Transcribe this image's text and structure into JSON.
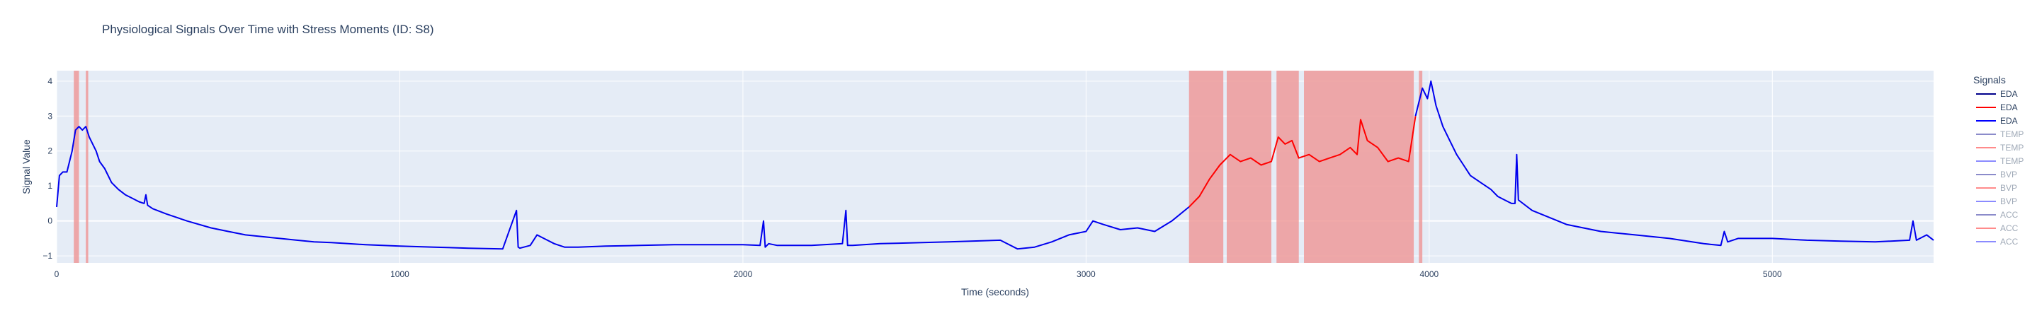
{
  "chart_data": {
    "type": "line",
    "title": "Physiological Signals Over Time with Stress Moments (ID: S8)",
    "xlabel": "Time (seconds)",
    "ylabel": "Signal Value",
    "xlim": [
      0,
      5470
    ],
    "ylim": [
      -1.2,
      4.3
    ],
    "x_ticks": [
      0,
      1000,
      2000,
      3000,
      4000,
      5000
    ],
    "x_tick_labels": [
      "0",
      "1000",
      "2000",
      "3000",
      "4000",
      "5000"
    ],
    "y_ticks": [
      -1,
      0,
      1,
      2,
      3,
      4
    ],
    "y_tick_labels": [
      "−1",
      "0",
      "1",
      "2",
      "3",
      "4"
    ],
    "grid": true,
    "legend_position": "right",
    "legend_title": "Signals",
    "legend": [
      {
        "name": "EDA",
        "color": "#00008b",
        "visible": true
      },
      {
        "name": "EDA",
        "color": "#ff0000",
        "visible": true
      },
      {
        "name": "EDA",
        "color": "#0000ff",
        "visible": true
      },
      {
        "name": "TEMP",
        "color": "#00008b",
        "visible": false
      },
      {
        "name": "TEMP",
        "color": "#ff0000",
        "visible": false
      },
      {
        "name": "TEMP",
        "color": "#0000ff",
        "visible": false
      },
      {
        "name": "BVP",
        "color": "#00008b",
        "visible": false
      },
      {
        "name": "BVP",
        "color": "#ff0000",
        "visible": false
      },
      {
        "name": "BVP",
        "color": "#0000ff",
        "visible": false
      },
      {
        "name": "ACC",
        "color": "#00008b",
        "visible": false
      },
      {
        "name": "ACC",
        "color": "#ff0000",
        "visible": false
      },
      {
        "name": "ACC",
        "color": "#0000ff",
        "visible": false
      }
    ],
    "stress_regions": [
      [
        50,
        65
      ],
      [
        85,
        92
      ],
      [
        3300,
        3400
      ],
      [
        3410,
        3540
      ],
      [
        3555,
        3620
      ],
      [
        3635,
        3955
      ],
      [
        3970,
        3980
      ]
    ],
    "stress_color": "#ef9a9a",
    "series": [
      {
        "name": "EDA",
        "color": "#0000ee",
        "x": [
          0,
          8,
          18,
          30,
          45,
          55,
          65,
          75,
          85,
          95,
          105,
          115,
          125,
          140,
          160,
          180,
          200,
          220,
          240,
          255,
          260,
          265,
          280,
          320,
          380,
          450,
          500,
          550,
          600,
          650,
          700,
          750,
          800,
          850,
          900,
          950,
          1000,
          1100,
          1200,
          1300,
          1340,
          1345,
          1350,
          1380,
          1400,
          1430,
          1450,
          1480,
          1520,
          1600,
          1700,
          1800,
          1900,
          2000,
          2050,
          2060,
          2065,
          2075,
          2100,
          2200,
          2290,
          2300,
          2305,
          2320,
          2400,
          2600,
          2750,
          2800,
          2850,
          2900,
          2950,
          3000,
          3020,
          3050,
          3100,
          3150,
          3200,
          3250,
          3300
        ],
        "y": [
          0.4,
          1.3,
          1.4,
          1.4,
          2.0,
          2.6,
          2.7,
          2.6,
          2.7,
          2.4,
          2.2,
          2.0,
          1.7,
          1.5,
          1.1,
          0.9,
          0.75,
          0.65,
          0.55,
          0.5,
          0.75,
          0.45,
          0.35,
          0.2,
          0.0,
          -0.2,
          -0.3,
          -0.4,
          -0.45,
          -0.5,
          -0.55,
          -0.6,
          -0.62,
          -0.65,
          -0.68,
          -0.7,
          -0.72,
          -0.75,
          -0.78,
          -0.8,
          0.3,
          -0.75,
          -0.78,
          -0.7,
          -0.4,
          -0.55,
          -0.65,
          -0.75,
          -0.75,
          -0.72,
          -0.7,
          -0.68,
          -0.68,
          -0.68,
          -0.7,
          0.0,
          -0.75,
          -0.65,
          -0.7,
          -0.7,
          -0.65,
          0.3,
          -0.7,
          -0.7,
          -0.65,
          -0.6,
          -0.55,
          -0.8,
          -0.75,
          -0.6,
          -0.4,
          -0.3,
          0.0,
          -0.1,
          -0.25,
          -0.2,
          -0.3,
          0.0,
          0.4
        ]
      },
      {
        "name": "EDA",
        "color": "#ff0000",
        "x": [
          3300,
          3330,
          3360,
          3390,
          3420,
          3450,
          3480,
          3510,
          3540,
          3560,
          3580,
          3600,
          3620,
          3650,
          3680,
          3710,
          3740,
          3770,
          3790,
          3800,
          3820,
          3850,
          3880,
          3910,
          3940,
          3960
        ],
        "y": [
          0.4,
          0.7,
          1.2,
          1.6,
          1.9,
          1.7,
          1.8,
          1.6,
          1.7,
          2.4,
          2.2,
          2.3,
          1.8,
          1.9,
          1.7,
          1.8,
          1.9,
          2.1,
          1.9,
          2.9,
          2.3,
          2.1,
          1.7,
          1.8,
          1.7,
          3.0
        ]
      },
      {
        "name": "EDA",
        "color": "#0000ee",
        "x": [
          3960,
          3980,
          3995,
          4005,
          4020,
          4040,
          4060,
          4080,
          4100,
          4120,
          4150,
          4180,
          4200,
          4220,
          4240,
          4250,
          4255,
          4260,
          4300,
          4350,
          4400,
          4500,
          4600,
          4700,
          4800,
          4850,
          4860,
          4870,
          4900,
          5000,
          5100,
          5200,
          5300,
          5400,
          5410,
          5420,
          5450,
          5470
        ],
        "y": [
          3.0,
          3.8,
          3.5,
          4.0,
          3.3,
          2.7,
          2.3,
          1.9,
          1.6,
          1.3,
          1.1,
          0.9,
          0.7,
          0.6,
          0.5,
          0.5,
          1.9,
          0.6,
          0.3,
          0.1,
          -0.1,
          -0.3,
          -0.4,
          -0.5,
          -0.65,
          -0.7,
          -0.3,
          -0.6,
          -0.5,
          -0.5,
          -0.55,
          -0.58,
          -0.6,
          -0.55,
          0.0,
          -0.55,
          -0.4,
          -0.55
        ]
      }
    ]
  }
}
